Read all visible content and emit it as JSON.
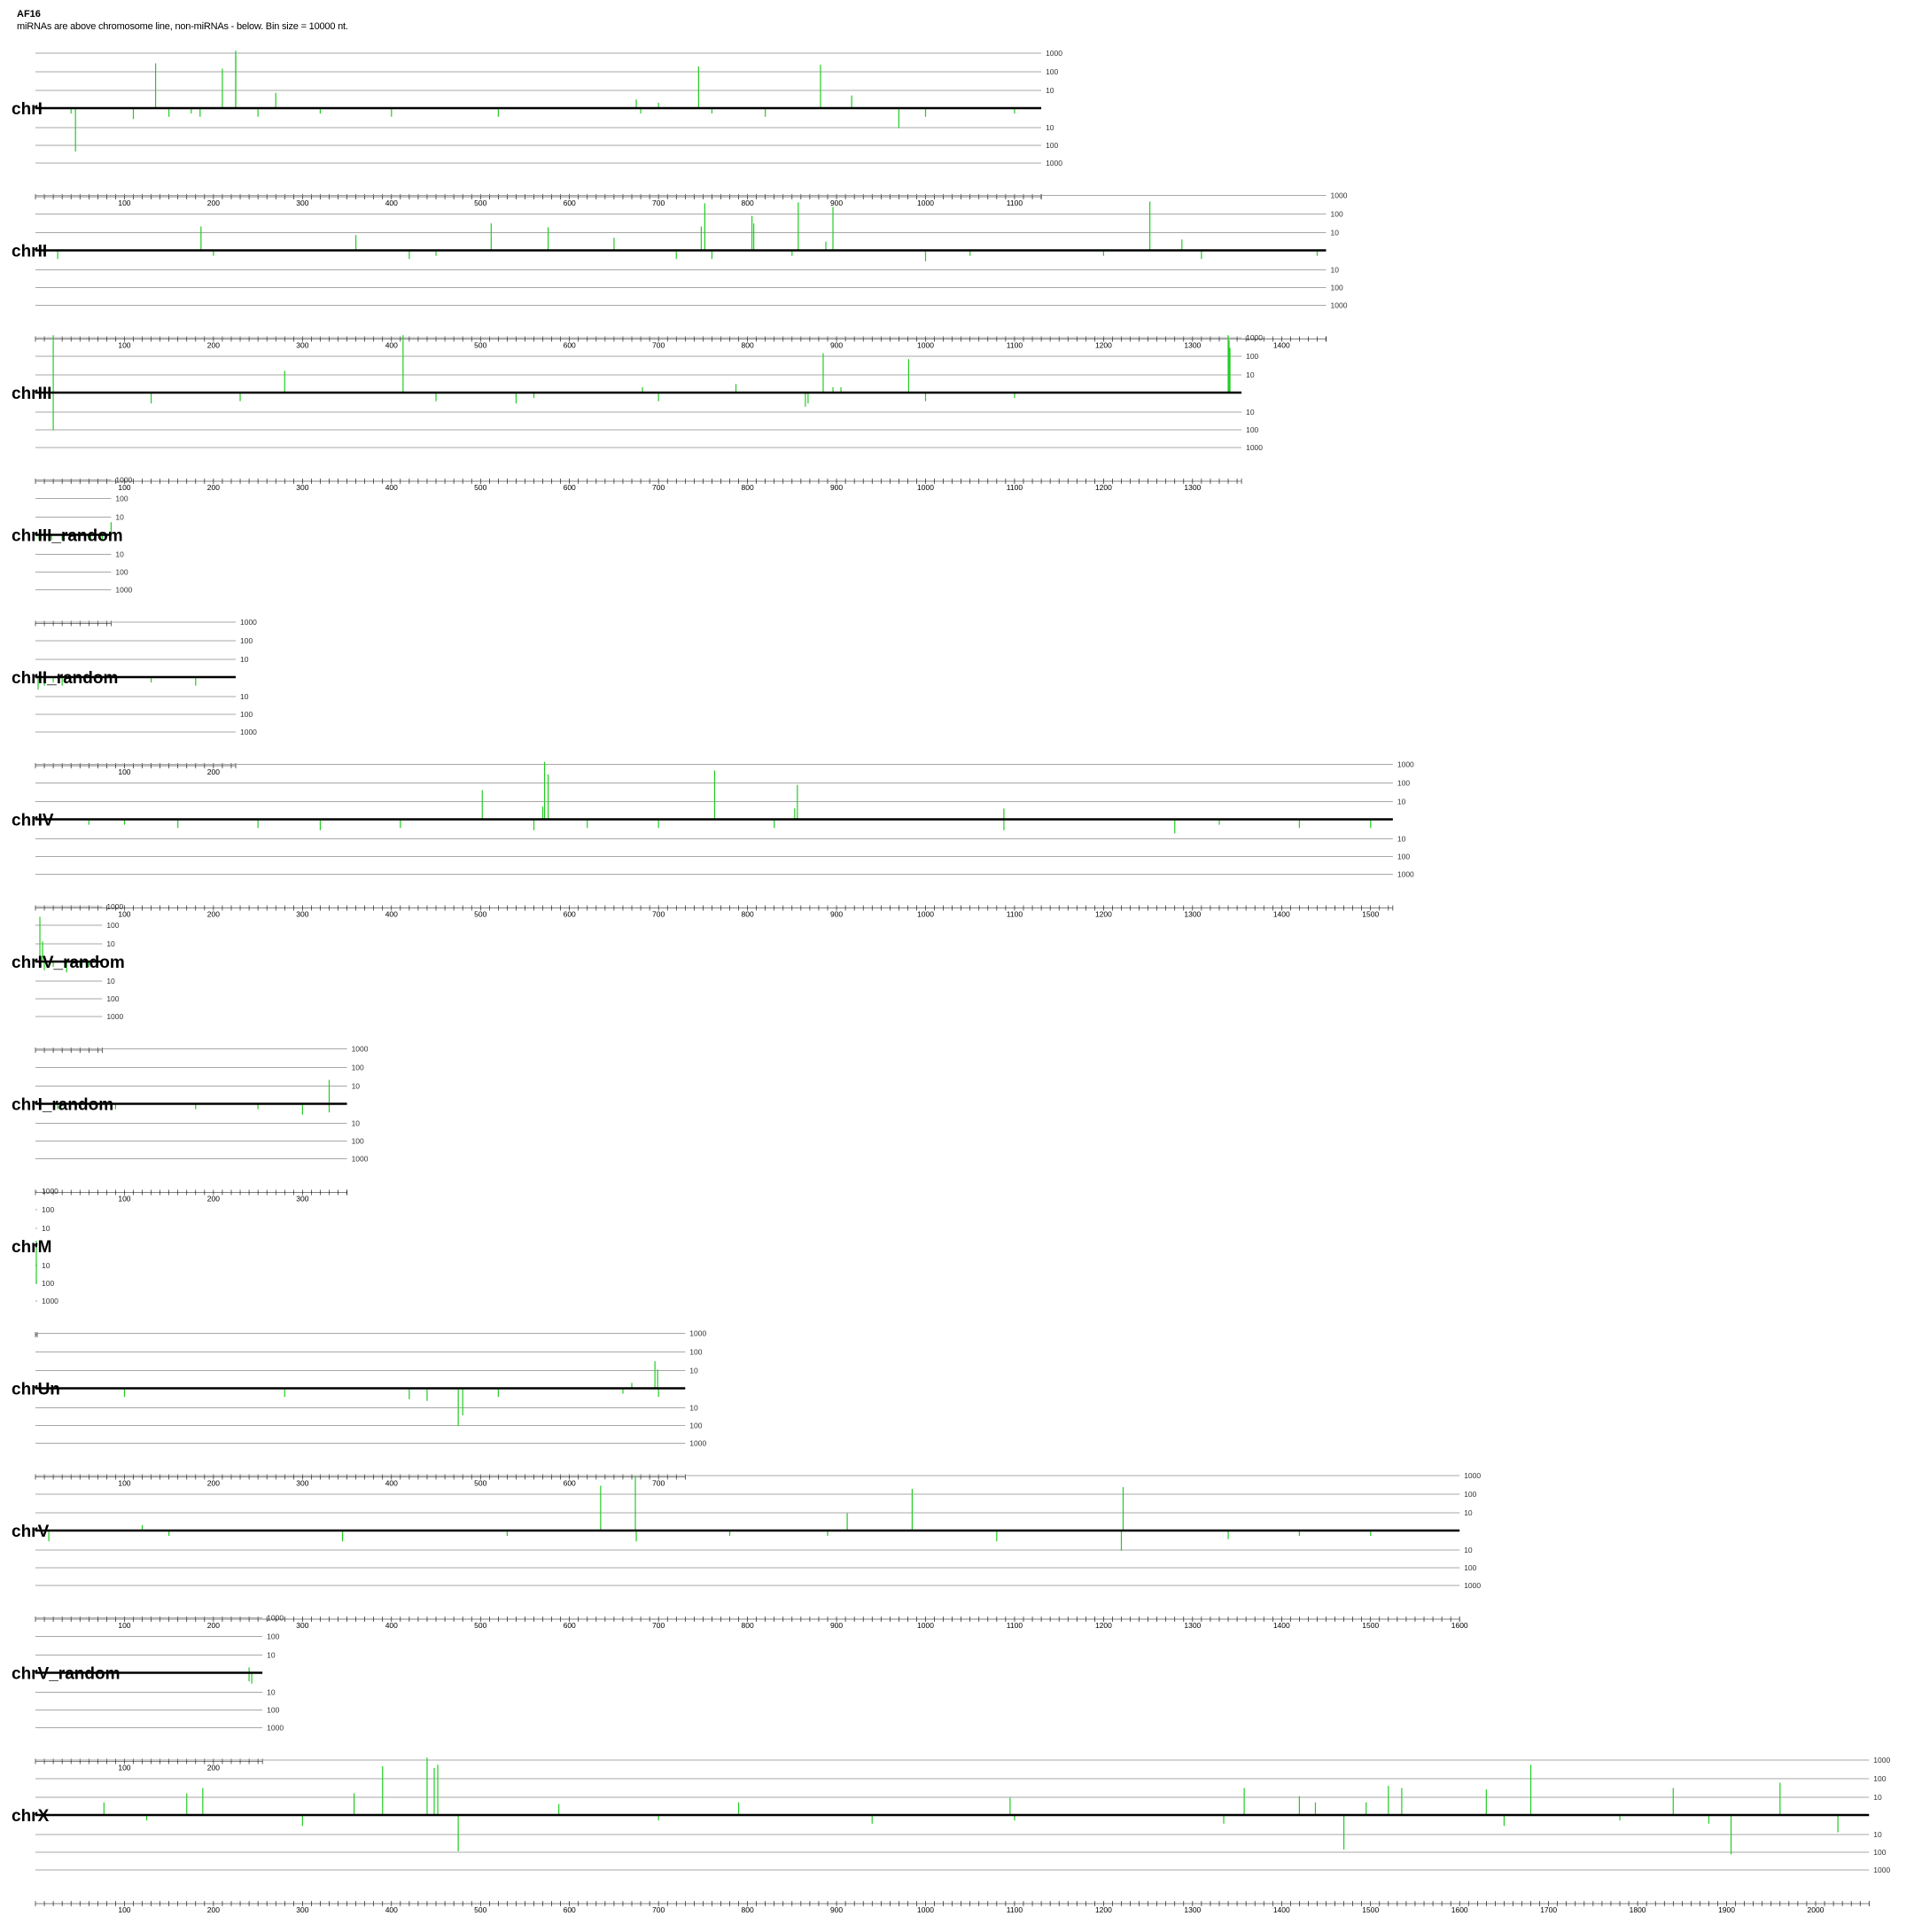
{
  "header": {
    "title": "AF16",
    "subtitle": "miRNAs are above chromosome line, non-miRNAs - below. Bin size = 10000 nt."
  },
  "colors": {
    "bar": "#22cc22",
    "axis": "#000000",
    "grid": "#8a8a8a",
    "background": "#ffffff"
  },
  "chart_data": {
    "type": "bar",
    "scale": "log",
    "bin_size_nt": 10000,
    "x_unit": "bin (x 10000 nt)",
    "level_labels": [
      "1000",
      "100",
      "10",
      "10",
      "100",
      "1000"
    ],
    "levels": [
      1000,
      100,
      10
    ],
    "chromosomes": [
      {
        "name": "chrI",
        "bins": 1130,
        "ticks": [
          100,
          200,
          300,
          400,
          500,
          600,
          700,
          800,
          900,
          1000,
          1100
        ],
        "mirna": [
          [
            135,
            300
          ],
          [
            210,
            150
          ],
          [
            225,
            1500
          ],
          [
            225,
            800
          ],
          [
            270,
            6
          ],
          [
            675,
            2
          ],
          [
            745,
            200
          ],
          [
            882,
            250
          ],
          [
            917,
            4
          ],
          [
            700,
            1
          ]
        ],
        "other": [
          [
            40,
            1
          ],
          [
            45,
            250
          ],
          [
            110,
            3
          ],
          [
            150,
            2
          ],
          [
            175,
            1
          ],
          [
            185,
            2
          ],
          [
            250,
            2
          ],
          [
            320,
            1
          ],
          [
            400,
            2
          ],
          [
            520,
            2
          ],
          [
            680,
            1
          ],
          [
            760,
            1
          ],
          [
            820,
            2
          ],
          [
            970,
            12
          ],
          [
            1000,
            2
          ],
          [
            1100,
            1
          ]
        ]
      },
      {
        "name": "chrII",
        "bins": 1450,
        "ticks": [
          100,
          200,
          300,
          400,
          500,
          600,
          700,
          800,
          900,
          1000,
          1100,
          1200,
          1300,
          1400
        ],
        "mirna": [
          [
            186,
            20
          ],
          [
            360,
            6
          ],
          [
            512,
            30
          ],
          [
            576,
            18
          ],
          [
            650,
            4
          ],
          [
            748,
            20
          ],
          [
            752,
            400
          ],
          [
            805,
            80
          ],
          [
            807,
            30
          ],
          [
            857,
            450
          ],
          [
            896,
            250
          ],
          [
            888,
            2
          ],
          [
            1252,
            500
          ],
          [
            1288,
            3
          ]
        ],
        "other": [
          [
            25,
            2
          ],
          [
            200,
            1
          ],
          [
            420,
            2
          ],
          [
            450,
            1
          ],
          [
            720,
            2
          ],
          [
            760,
            2
          ],
          [
            850,
            1
          ],
          [
            1000,
            3
          ],
          [
            1050,
            1
          ],
          [
            1200,
            1
          ],
          [
            1310,
            2
          ],
          [
            1440,
            1
          ]
        ]
      },
      {
        "name": "chrIII",
        "bins": 1355,
        "ticks": [
          100,
          200,
          300,
          400,
          500,
          600,
          700,
          800,
          900,
          1000,
          1100,
          1200,
          1300
        ],
        "mirna": [
          [
            20,
            1500
          ],
          [
            280,
            15
          ],
          [
            413,
            1500
          ],
          [
            682,
            1
          ],
          [
            787,
            2
          ],
          [
            885,
            150
          ],
          [
            981,
            70
          ],
          [
            896,
            1
          ],
          [
            905,
            1
          ],
          [
            1340,
            1500
          ],
          [
            1341,
            800
          ],
          [
            1342,
            300
          ]
        ],
        "other": [
          [
            20,
            120
          ],
          [
            130,
            3
          ],
          [
            230,
            2
          ],
          [
            450,
            2
          ],
          [
            540,
            3
          ],
          [
            560,
            1
          ],
          [
            700,
            2
          ],
          [
            865,
            5
          ],
          [
            868,
            3
          ],
          [
            1000,
            2
          ],
          [
            1100,
            1
          ]
        ]
      },
      {
        "name": "chrIII_random",
        "bins": 85,
        "ticks": [],
        "mirna": [
          [
            85,
            4
          ]
        ],
        "other": [
          [
            4,
            1
          ],
          [
            10,
            1
          ],
          [
            18,
            1
          ],
          [
            30,
            1
          ],
          [
            45,
            1
          ],
          [
            62,
            1
          ],
          [
            75,
            1
          ]
        ]
      },
      {
        "name": "chrII_random",
        "bins": 225,
        "ticks": [
          100,
          200
        ],
        "mirna": [
          [
            5,
            1
          ]
        ],
        "other": [
          [
            3,
            4
          ],
          [
            10,
            2
          ],
          [
            20,
            1
          ],
          [
            30,
            2
          ],
          [
            55,
            1
          ],
          [
            90,
            1
          ],
          [
            130,
            1
          ],
          [
            180,
            2
          ]
        ]
      },
      {
        "name": "chrIV",
        "bins": 1525,
        "ticks": [
          100,
          200,
          300,
          400,
          500,
          600,
          700,
          800,
          900,
          1000,
          1100,
          1200,
          1300,
          1400,
          1500
        ],
        "mirna": [
          [
            502,
            40
          ],
          [
            572,
            1500
          ],
          [
            576,
            300
          ],
          [
            570,
            4
          ],
          [
            763,
            500
          ],
          [
            856,
            80
          ],
          [
            853,
            3
          ],
          [
            1088,
            3
          ]
        ],
        "other": [
          [
            60,
            1
          ],
          [
            100,
            1
          ],
          [
            160,
            2
          ],
          [
            250,
            2
          ],
          [
            320,
            3
          ],
          [
            410,
            2
          ],
          [
            560,
            3
          ],
          [
            620,
            2
          ],
          [
            700,
            2
          ],
          [
            830,
            2
          ],
          [
            1088,
            3
          ],
          [
            1280,
            5
          ],
          [
            1330,
            1
          ],
          [
            1420,
            2
          ],
          [
            1500,
            2
          ]
        ]
      },
      {
        "name": "chrIV_random",
        "bins": 75,
        "ticks": [],
        "mirna": [
          [
            5,
            300
          ],
          [
            8,
            12
          ]
        ],
        "other": [
          [
            10,
            2
          ],
          [
            20,
            1
          ],
          [
            35,
            3
          ],
          [
            50,
            1
          ],
          [
            60,
            1
          ]
        ]
      },
      {
        "name": "chrI_random",
        "bins": 350,
        "ticks": [
          100,
          200,
          300
        ],
        "mirna": [
          [
            330,
            20
          ]
        ],
        "other": [
          [
            25,
            1
          ],
          [
            90,
            1
          ],
          [
            180,
            1
          ],
          [
            250,
            1
          ],
          [
            300,
            3
          ],
          [
            330,
            2
          ]
        ]
      },
      {
        "name": "chrM",
        "bins": 2,
        "ticks": [],
        "mirna": [
          [
            1,
            1
          ]
        ],
        "other": [
          [
            1,
            120
          ]
        ]
      },
      {
        "name": "chrUn",
        "bins": 730,
        "ticks": [
          100,
          200,
          300,
          400,
          500,
          600,
          700
        ],
        "mirna": [
          [
            670,
            1
          ],
          [
            696,
            30
          ],
          [
            699,
            10
          ]
        ],
        "other": [
          [
            20,
            1
          ],
          [
            100,
            2
          ],
          [
            280,
            2
          ],
          [
            420,
            3
          ],
          [
            440,
            4
          ],
          [
            475,
            120
          ],
          [
            480,
            30
          ],
          [
            520,
            2
          ],
          [
            660,
            1
          ],
          [
            700,
            2
          ]
        ]
      },
      {
        "name": "chrV",
        "bins": 1600,
        "ticks": [
          100,
          200,
          300,
          400,
          500,
          600,
          700,
          800,
          900,
          1000,
          1100,
          1200,
          1300,
          1400,
          1500,
          1600
        ],
        "mirna": [
          [
            635,
            300
          ],
          [
            674,
            1000
          ],
          [
            912,
            8
          ],
          [
            985,
            200
          ],
          [
            1222,
            250
          ],
          [
            120,
            1
          ]
        ],
        "other": [
          [
            15,
            3
          ],
          [
            150,
            1
          ],
          [
            345,
            3
          ],
          [
            530,
            1
          ],
          [
            675,
            3
          ],
          [
            780,
            1
          ],
          [
            890,
            1
          ],
          [
            1080,
            3
          ],
          [
            1220,
            12
          ],
          [
            1340,
            2
          ],
          [
            1420,
            1
          ],
          [
            1500,
            1
          ]
        ]
      },
      {
        "name": "chrV_random",
        "bins": 255,
        "ticks": [
          100,
          200
        ],
        "mirna": [
          [
            240,
            1
          ]
        ],
        "other": [
          [
            240,
            2
          ],
          [
            243,
            3
          ]
        ]
      },
      {
        "name": "chrX",
        "bins": 2060,
        "ticks": [
          100,
          200,
          300,
          400,
          500,
          600,
          700,
          800,
          900,
          1000,
          1100,
          1200,
          1300,
          1400,
          1500,
          1600,
          1700,
          1800,
          1900,
          2000
        ],
        "mirna": [
          [
            77,
            4
          ],
          [
            170,
            15
          ],
          [
            188,
            30
          ],
          [
            358,
            15
          ],
          [
            390,
            500
          ],
          [
            440,
            1500
          ],
          [
            448,
            400
          ],
          [
            452,
            600
          ],
          [
            588,
            3
          ],
          [
            790,
            4
          ],
          [
            1095,
            8
          ],
          [
            1358,
            30
          ],
          [
            1420,
            10
          ],
          [
            1438,
            4
          ],
          [
            1495,
            4
          ],
          [
            1520,
            40
          ],
          [
            1535,
            30
          ],
          [
            1680,
            600
          ],
          [
            1630,
            25
          ],
          [
            1840,
            30
          ],
          [
            1960,
            60
          ]
        ],
        "other": [
          [
            125,
            1
          ],
          [
            300,
            3
          ],
          [
            475,
            100
          ],
          [
            700,
            1
          ],
          [
            940,
            2
          ],
          [
            1100,
            1
          ],
          [
            1335,
            2
          ],
          [
            1470,
            80
          ],
          [
            1650,
            3
          ],
          [
            1780,
            1
          ],
          [
            1880,
            2
          ],
          [
            1905,
            150
          ],
          [
            2025,
            8
          ]
        ]
      }
    ]
  }
}
